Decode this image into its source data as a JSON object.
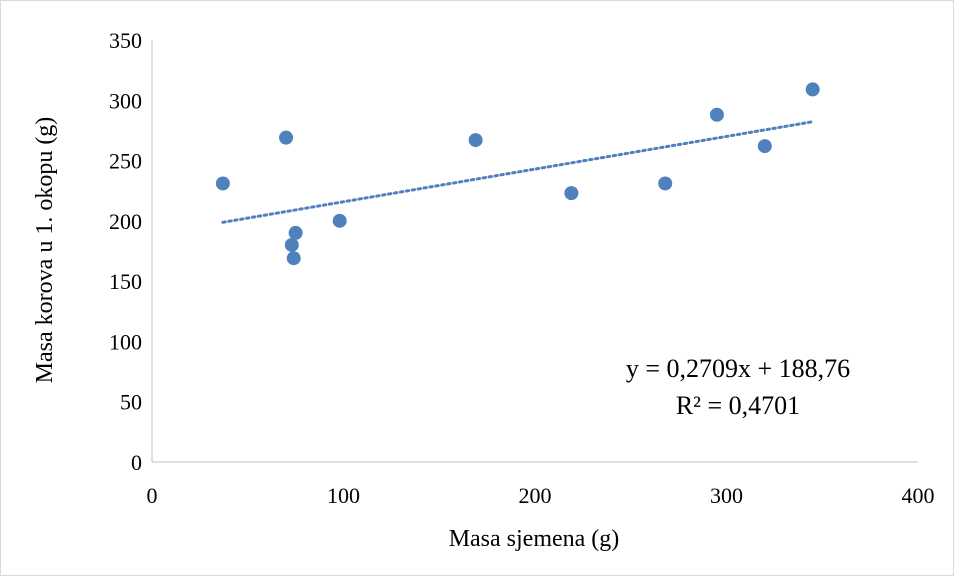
{
  "chart_data": {
    "type": "scatter",
    "title": "",
    "xlabel": "Masa sjemena (g)",
    "ylabel": "Masa korova u 1. okopu (g)",
    "xlim": [
      0,
      400
    ],
    "ylim": [
      0,
      350
    ],
    "x_ticks": [
      0,
      100,
      200,
      300,
      400
    ],
    "y_ticks": [
      0,
      50,
      100,
      150,
      200,
      250,
      300,
      350
    ],
    "grid": false,
    "legend": "none",
    "marker_color": "#4f81bd",
    "trendline_color": "#4f81bd",
    "points": [
      {
        "x": 37,
        "y": 231
      },
      {
        "x": 70,
        "y": 269
      },
      {
        "x": 73,
        "y": 180
      },
      {
        "x": 74,
        "y": 169
      },
      {
        "x": 75,
        "y": 190
      },
      {
        "x": 98,
        "y": 200
      },
      {
        "x": 169,
        "y": 267
      },
      {
        "x": 219,
        "y": 223
      },
      {
        "x": 268,
        "y": 231
      },
      {
        "x": 295,
        "y": 288
      },
      {
        "x": 320,
        "y": 262
      },
      {
        "x": 345,
        "y": 309
      }
    ],
    "trendline": {
      "type": "linear",
      "slope": 0.2709,
      "intercept": 188.76,
      "x_range": [
        37,
        345
      ],
      "equation": "y = 0,2709x + 188,76",
      "r_squared": "R² = 0,4701"
    }
  }
}
